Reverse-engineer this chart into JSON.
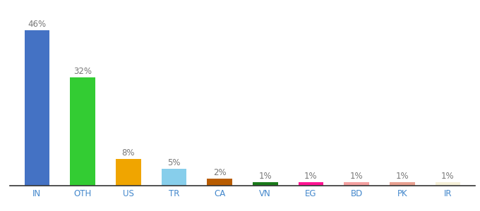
{
  "categories": [
    "IN",
    "OTH",
    "US",
    "TR",
    "CA",
    "VN",
    "EG",
    "BD",
    "PK",
    "IR"
  ],
  "values": [
    46,
    32,
    8,
    5,
    2,
    1,
    1,
    1,
    1,
    1
  ],
  "labels": [
    "46%",
    "32%",
    "8%",
    "5%",
    "2%",
    "1%",
    "1%",
    "1%",
    "1%",
    "1%"
  ],
  "bar_colors": [
    "#4472c4",
    "#33cc33",
    "#f0a500",
    "#87ceeb",
    "#b85c00",
    "#1a7a1a",
    "#ff1493",
    "#f4a0a0",
    "#e8a090",
    "#f5f0d8"
  ],
  "ylim": [
    0,
    50
  ],
  "background_color": "#ffffff",
  "label_fontsize": 8.5,
  "tick_fontsize": 8.5,
  "label_color": "#777777",
  "tick_color": "#4488cc",
  "bottom_spine_color": "#333333",
  "bar_width": 0.55
}
